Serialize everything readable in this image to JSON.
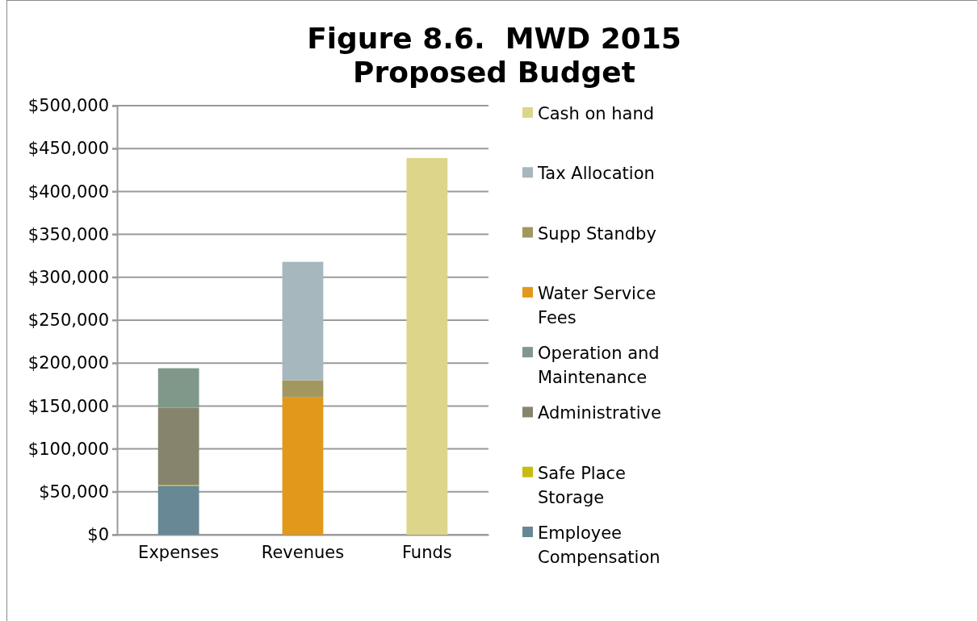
{
  "chart_data": {
    "type": "bar",
    "title": "Figure 8.6.  MWD 2015 Proposed Budget",
    "categories": [
      "Expenses",
      "Revenues",
      "Funds"
    ],
    "stacked": true,
    "grid": "y",
    "legend": "right",
    "ylim": [
      0,
      500000
    ],
    "yticks": [
      {
        "value": 0,
        "label": "$0"
      },
      {
        "value": 50000,
        "label": "$50,000"
      },
      {
        "value": 100000,
        "label": "$100,000"
      },
      {
        "value": 150000,
        "label": "$150,000"
      },
      {
        "value": 200000,
        "label": "$200,000"
      },
      {
        "value": 250000,
        "label": "$250,000"
      },
      {
        "value": 300000,
        "label": "$300,000"
      },
      {
        "value": 350000,
        "label": "$350,000"
      },
      {
        "value": 400000,
        "label": "$400,000"
      },
      {
        "value": 450000,
        "label": "$450,000"
      },
      {
        "value": 500000,
        "label": "$500,000"
      }
    ],
    "series": [
      {
        "name": "Employee Compensation",
        "color": "#678894",
        "values": [
          57000,
          null,
          null
        ]
      },
      {
        "name": "Safe Place Storage",
        "color": "#c8bc10",
        "values": [
          1000,
          null,
          null
        ]
      },
      {
        "name": "Administrative",
        "color": "#86846c",
        "values": [
          90000,
          null,
          null
        ]
      },
      {
        "name": "Operation and Maintenance",
        "color": "#80988a",
        "values": [
          46000,
          null,
          null
        ]
      },
      {
        "name": "Water Service Fees",
        "color": "#e2981a",
        "values": [
          null,
          160000,
          null
        ]
      },
      {
        "name": "Supp Standby",
        "color": "#a39760",
        "values": [
          null,
          20000,
          null
        ]
      },
      {
        "name": "Tax Allocation",
        "color": "#a6b7bd",
        "values": [
          null,
          138000,
          null
        ]
      },
      {
        "name": "Cash on hand",
        "color": "#dcd58a",
        "values": [
          null,
          null,
          439000
        ]
      }
    ]
  }
}
